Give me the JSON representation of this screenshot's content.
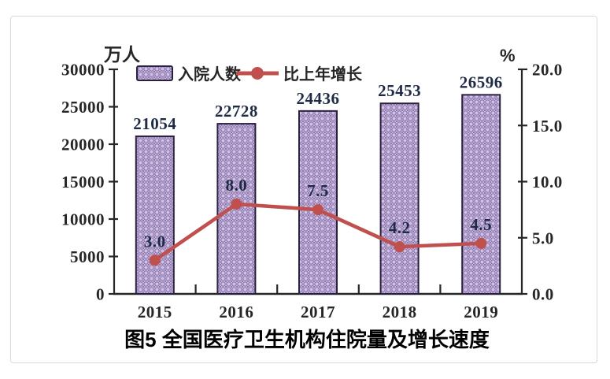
{
  "labels": {
    "unit_left": "万人",
    "unit_right": "%",
    "title": "图5  全国医疗卫生机构住院量及增长速度"
  },
  "legend": {
    "bar_label": "入院人数",
    "line_label": "比上年增长"
  },
  "chart_data": {
    "type": "bar",
    "subtype": "bar+line combo, dual axis",
    "categories": [
      "2015",
      "2016",
      "2017",
      "2018",
      "2019"
    ],
    "series": [
      {
        "name": "入院人数",
        "type": "bar",
        "axis": "left",
        "values": [
          21054,
          22728,
          24436,
          25453,
          26596
        ],
        "labels": [
          "21054",
          "22728",
          "24436",
          "25453",
          "26596"
        ]
      },
      {
        "name": "比上年增长",
        "type": "line",
        "axis": "right",
        "values": [
          3.0,
          8.0,
          7.5,
          4.2,
          4.5
        ],
        "labels": [
          "3.0",
          "8.0",
          "7.5",
          "4.2",
          "4.5"
        ]
      }
    ],
    "left_axis": {
      "title": "万人",
      "min": 0,
      "max": 30000,
      "step": 5000,
      "tick_labels": [
        "0",
        "5000",
        "10000",
        "15000",
        "20000",
        "25000",
        "30000"
      ]
    },
    "right_axis": {
      "title": "%",
      "min": 0,
      "max": 20,
      "step": 5,
      "tick_labels": [
        "0.0",
        "5.0",
        "10.0",
        "15.0",
        "20.0"
      ]
    },
    "caption": "图5  全国医疗卫生机构住院量及增长速度",
    "legend_position": "top-inside",
    "grid": false,
    "colors": {
      "bar_fill": "#cfc3e0",
      "bar_pattern": "#8e74b4",
      "bar_pattern_dot": "#5a4880",
      "bar_border": "#2a2140",
      "line": "#c0504d",
      "value_label": "#1f2b45",
      "axis": "#262626"
    }
  }
}
